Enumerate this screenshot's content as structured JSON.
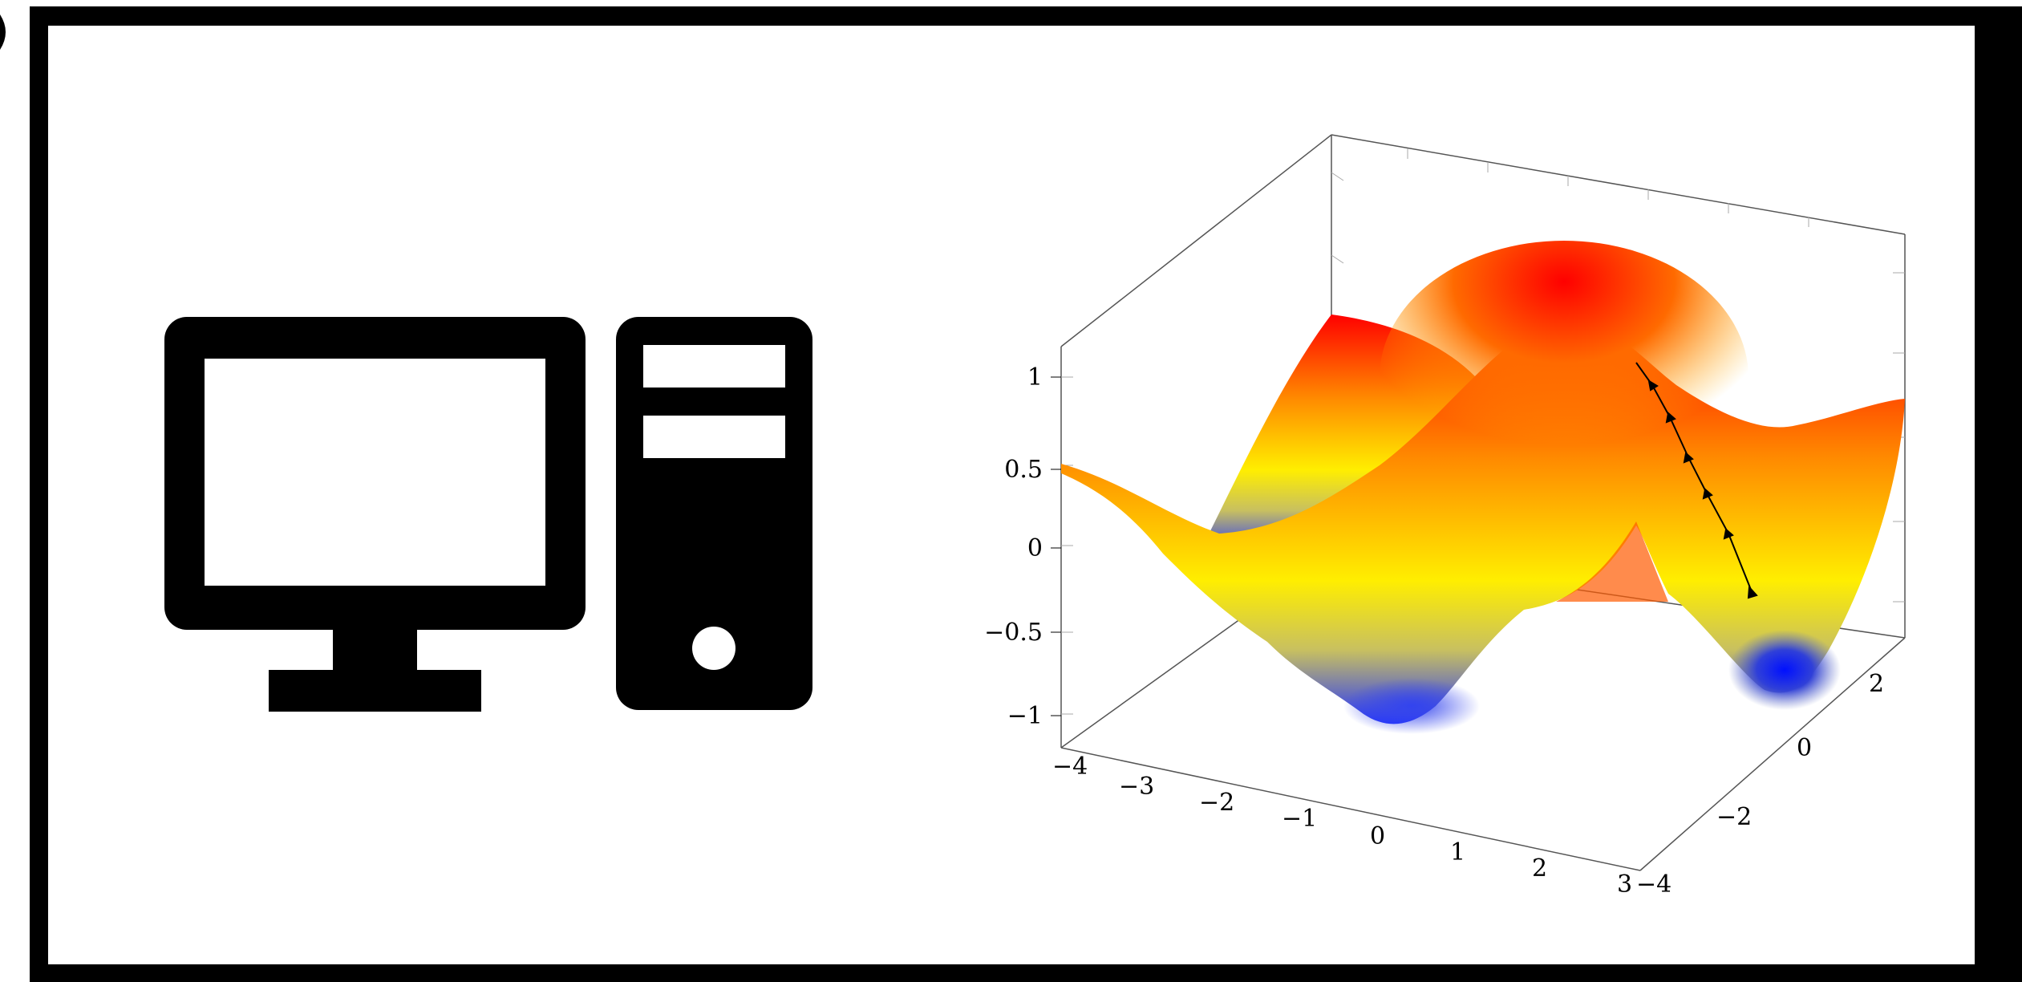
{
  "icons": {
    "monitor": "desktop-monitor-icon",
    "tower": "computer-tower-icon"
  },
  "colors": {
    "frame": "#000000",
    "background": "#ffffff",
    "surface_low": "#1a1aff",
    "surface_mid": "#ffff00",
    "surface_high": "#ff0000",
    "path": "#000000"
  },
  "chart_data": {
    "type": "surface",
    "zlabel_ticks": [
      "1",
      "0.5",
      "0",
      "−0.5",
      "−1"
    ],
    "zticks": [
      1,
      0.5,
      0,
      -0.5,
      -1
    ],
    "xticks": [
      "−4",
      "−3",
      "−2",
      "−1",
      "0",
      "1",
      "2",
      "3"
    ],
    "xtick_values": [
      -4,
      -3,
      -2,
      -1,
      0,
      1,
      2,
      3
    ],
    "yticks": [
      "−4",
      "−2",
      "0",
      "2"
    ],
    "ytick_values": [
      -4,
      -2,
      0,
      2
    ],
    "xlim": [
      -4,
      3
    ],
    "ylim": [
      -4,
      3
    ],
    "zlim": [
      -1.2,
      1.2
    ],
    "colormap": [
      "#0000ff",
      "#ffff00",
      "#ff0000"
    ],
    "descent_path": {
      "markers": 6
    }
  }
}
